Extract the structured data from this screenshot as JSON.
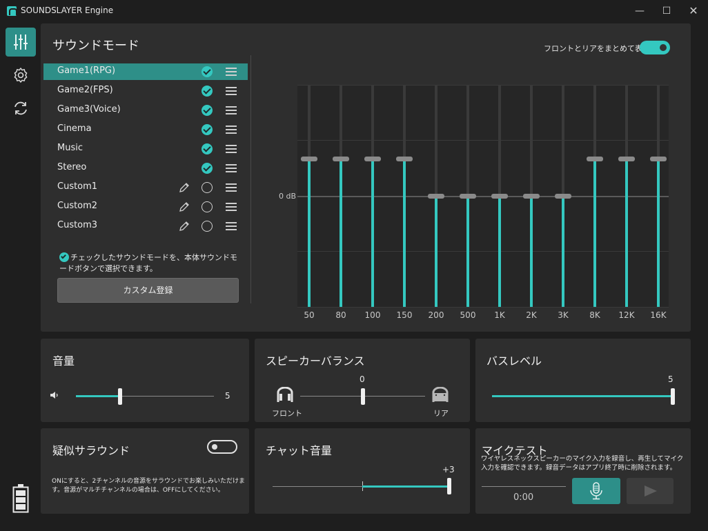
{
  "window": {
    "title": "SOUNDSLAYER Engine"
  },
  "sidebar": {
    "items": [
      {
        "name": "equalizer-icon",
        "active": true
      },
      {
        "name": "gear-icon",
        "active": false
      },
      {
        "name": "refresh-icon",
        "active": false
      }
    ]
  },
  "sound_mode": {
    "title": "サウンドモード",
    "modes": [
      {
        "label": "Game1(RPG)",
        "checked": true,
        "editable": false
      },
      {
        "label": "Game2(FPS)",
        "checked": true,
        "editable": false
      },
      {
        "label": "Game3(Voice)",
        "checked": true,
        "editable": false
      },
      {
        "label": "Cinema",
        "checked": true,
        "editable": false
      },
      {
        "label": "Music",
        "checked": true,
        "editable": false
      },
      {
        "label": "Stereo",
        "checked": true,
        "editable": false
      },
      {
        "label": "Custom1",
        "checked": false,
        "editable": true
      },
      {
        "label": "Custom2",
        "checked": false,
        "editable": true
      },
      {
        "label": "Custom3",
        "checked": false,
        "editable": true
      }
    ],
    "note": "チェックしたサウンドモードを、本体サウンドモードボタンで選択できます。",
    "register_button": "カスタム登録"
  },
  "front_rear_toggle": {
    "label": "フロントとリアをまとめて表示",
    "on": true
  },
  "eq": {
    "zero_label": "0 dB",
    "bands": [
      {
        "label": "50",
        "level": 0.333
      },
      {
        "label": "80",
        "level": 0.333
      },
      {
        "label": "100",
        "level": 0.333
      },
      {
        "label": "150",
        "level": 0.333
      },
      {
        "label": "200",
        "level": 0
      },
      {
        "label": "500",
        "level": 0
      },
      {
        "label": "1K",
        "level": 0
      },
      {
        "label": "2K",
        "level": 0
      },
      {
        "label": "3K",
        "level": 0
      },
      {
        "label": "8K",
        "level": 0.333
      },
      {
        "label": "12K",
        "level": 0.333
      },
      {
        "label": "16K",
        "level": 0.333
      }
    ]
  },
  "volume": {
    "title": "音量",
    "value": "5",
    "fraction": 0.32
  },
  "balance": {
    "title": "スピーカーバランス",
    "value": "0",
    "front_label": "フロント",
    "rear_label": "リア",
    "fraction": 0.5
  },
  "bass": {
    "title": "バスレベル",
    "value": "5",
    "fraction": 1.0
  },
  "surround": {
    "title": "疑似サラウンド",
    "on": false,
    "desc": "ONにすると、2チャンネルの音源をサラウンドでお楽しみいただけます。音源がマルチチャンネルの場合は、OFFにしてください。"
  },
  "chat": {
    "title": "チャット音量",
    "value": "+3",
    "fraction": 1.0
  },
  "mic_test": {
    "title": "マイクテスト",
    "desc": "ワイヤレスネックスピーカーのマイク入力を録音し、再生してマイク入力を確認できます。録音データはアプリ終了時に削除されます。",
    "time": "0:00"
  }
}
